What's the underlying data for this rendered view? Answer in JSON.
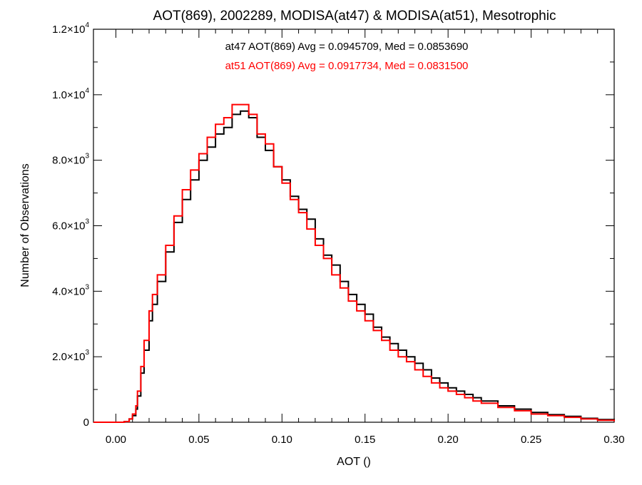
{
  "chart_data": {
    "type": "line",
    "title": "AOT(869), 2002289, MODISA(at47) & MODISA(at51), Mesotrophic",
    "xlabel": "AOT ()",
    "ylabel": "Number of Observations",
    "xlim": [
      -0.0135,
      0.3
    ],
    "ylim": [
      0,
      12000
    ],
    "x_ticks": [
      0.0,
      0.05,
      0.1,
      0.15,
      0.2,
      0.25,
      0.3
    ],
    "x_tick_labels": [
      "0.00",
      "0.05",
      "0.10",
      "0.15",
      "0.20",
      "0.25",
      "0.30"
    ],
    "y_ticks": [
      0,
      2000,
      4000,
      6000,
      8000,
      10000,
      12000
    ],
    "y_tick_labels": [
      {
        "mantissa": "0",
        "exponent": ""
      },
      {
        "mantissa": "2.0×10",
        "exponent": "3"
      },
      {
        "mantissa": "4.0×10",
        "exponent": "3"
      },
      {
        "mantissa": "6.0×10",
        "exponent": "3"
      },
      {
        "mantissa": "8.0×10",
        "exponent": "3"
      },
      {
        "mantissa": "1.0×10",
        "exponent": "4"
      },
      {
        "mantissa": "1.2×10",
        "exponent": "4"
      }
    ],
    "annotations": [
      {
        "text": "at47 AOT(869) Avg = 0.0945709, Med = 0.0853690",
        "color": "#000000"
      },
      {
        "text": "at51 AOT(869) Avg = 0.0917734, Med = 0.0831500",
        "color": "#ff0000"
      }
    ],
    "series": [
      {
        "color": "#000000",
        "x": [
          -0.0135,
          0.0,
          0.005,
          0.008,
          0.01,
          0.012,
          0.013,
          0.015,
          0.017,
          0.02,
          0.022,
          0.025,
          0.03,
          0.035,
          0.04,
          0.045,
          0.05,
          0.055,
          0.06,
          0.065,
          0.07,
          0.075,
          0.08,
          0.085,
          0.09,
          0.095,
          0.1,
          0.105,
          0.11,
          0.115,
          0.12,
          0.125,
          0.13,
          0.135,
          0.14,
          0.145,
          0.15,
          0.155,
          0.16,
          0.165,
          0.17,
          0.175,
          0.18,
          0.185,
          0.19,
          0.195,
          0.2,
          0.205,
          0.21,
          0.215,
          0.22,
          0.23,
          0.24,
          0.25,
          0.26,
          0.27,
          0.28,
          0.29,
          0.3
        ],
        "y": [
          0,
          0,
          20,
          100,
          200,
          400,
          800,
          1500,
          2200,
          3100,
          3600,
          4300,
          5200,
          6100,
          6800,
          7400,
          8000,
          8400,
          8800,
          9000,
          9400,
          9500,
          9300,
          8700,
          8300,
          7800,
          7400,
          6900,
          6500,
          6200,
          5600,
          5100,
          4800,
          4300,
          3900,
          3600,
          3300,
          2900,
          2600,
          2400,
          2200,
          2000,
          1800,
          1600,
          1350,
          1200,
          1050,
          950,
          850,
          750,
          650,
          500,
          400,
          300,
          230,
          180,
          120,
          80,
          40
        ]
      },
      {
        "color": "#ff0000",
        "x": [
          -0.0135,
          0.0,
          0.005,
          0.008,
          0.01,
          0.012,
          0.013,
          0.015,
          0.017,
          0.02,
          0.022,
          0.025,
          0.03,
          0.035,
          0.04,
          0.045,
          0.05,
          0.055,
          0.06,
          0.065,
          0.07,
          0.075,
          0.08,
          0.085,
          0.09,
          0.095,
          0.1,
          0.105,
          0.11,
          0.115,
          0.12,
          0.125,
          0.13,
          0.135,
          0.14,
          0.145,
          0.15,
          0.155,
          0.16,
          0.165,
          0.17,
          0.175,
          0.18,
          0.185,
          0.19,
          0.195,
          0.2,
          0.205,
          0.21,
          0.215,
          0.22,
          0.23,
          0.24,
          0.25,
          0.26,
          0.27,
          0.28,
          0.29,
          0.3
        ],
        "y": [
          0,
          0,
          20,
          100,
          250,
          500,
          950,
          1700,
          2500,
          3400,
          3900,
          4500,
          5400,
          6300,
          7100,
          7700,
          8200,
          8700,
          9100,
          9300,
          9700,
          9700,
          9400,
          8800,
          8500,
          7800,
          7300,
          6800,
          6400,
          5900,
          5400,
          5000,
          4500,
          4100,
          3700,
          3400,
          3100,
          2800,
          2500,
          2200,
          2000,
          1850,
          1600,
          1400,
          1200,
          1050,
          950,
          850,
          750,
          650,
          580,
          450,
          350,
          250,
          200,
          150,
          100,
          60,
          30
        ]
      }
    ]
  }
}
